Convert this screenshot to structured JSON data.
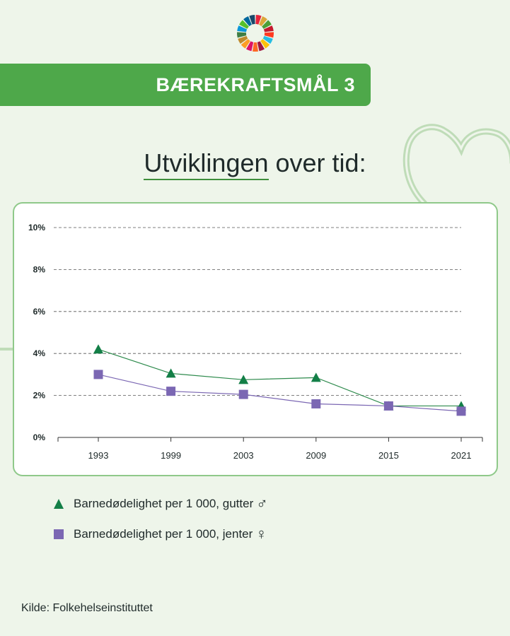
{
  "header": {
    "banner_text": "BÆREKRAFTSMÅL 3",
    "subtitle_underlined": "Utviklingen",
    "subtitle_rest": " over tid:"
  },
  "legend": [
    {
      "label": "Barnedødelighet per 1 000, gutter",
      "gender": "♂",
      "marker": "triangle",
      "color": "#137f47"
    },
    {
      "label": "Barnedødelighet per 1 000, jenter",
      "gender": "♀",
      "marker": "square",
      "color": "#7b67b3"
    }
  ],
  "source": "Kilde: Folkehelseinstituttet",
  "colors": {
    "banner": "#4ea84a",
    "background": "#eef5ea",
    "heart_outline": "#bfdcb8"
  },
  "chart_data": {
    "type": "line",
    "categories": [
      "1993",
      "1999",
      "2003",
      "2009",
      "2015",
      "2021"
    ],
    "series": [
      {
        "name": "Barnedødelighet per 1 000, gutter",
        "marker": "triangle",
        "color": "#137f47",
        "line_color": "#2d8a4c",
        "values": [
          4.2,
          3.05,
          2.75,
          2.85,
          1.5,
          1.5
        ]
      },
      {
        "name": "Barnedødelighet per 1 000, jenter",
        "marker": "square",
        "color": "#7b67b3",
        "line_color": "#7b67b3",
        "values": [
          3.0,
          2.2,
          2.05,
          1.6,
          1.5,
          1.25
        ]
      }
    ],
    "yticks": [
      "0%",
      "2%",
      "4%",
      "6%",
      "8%",
      "10%"
    ],
    "ylim": [
      0,
      10
    ],
    "grid": true,
    "legend_position": "bottom"
  }
}
